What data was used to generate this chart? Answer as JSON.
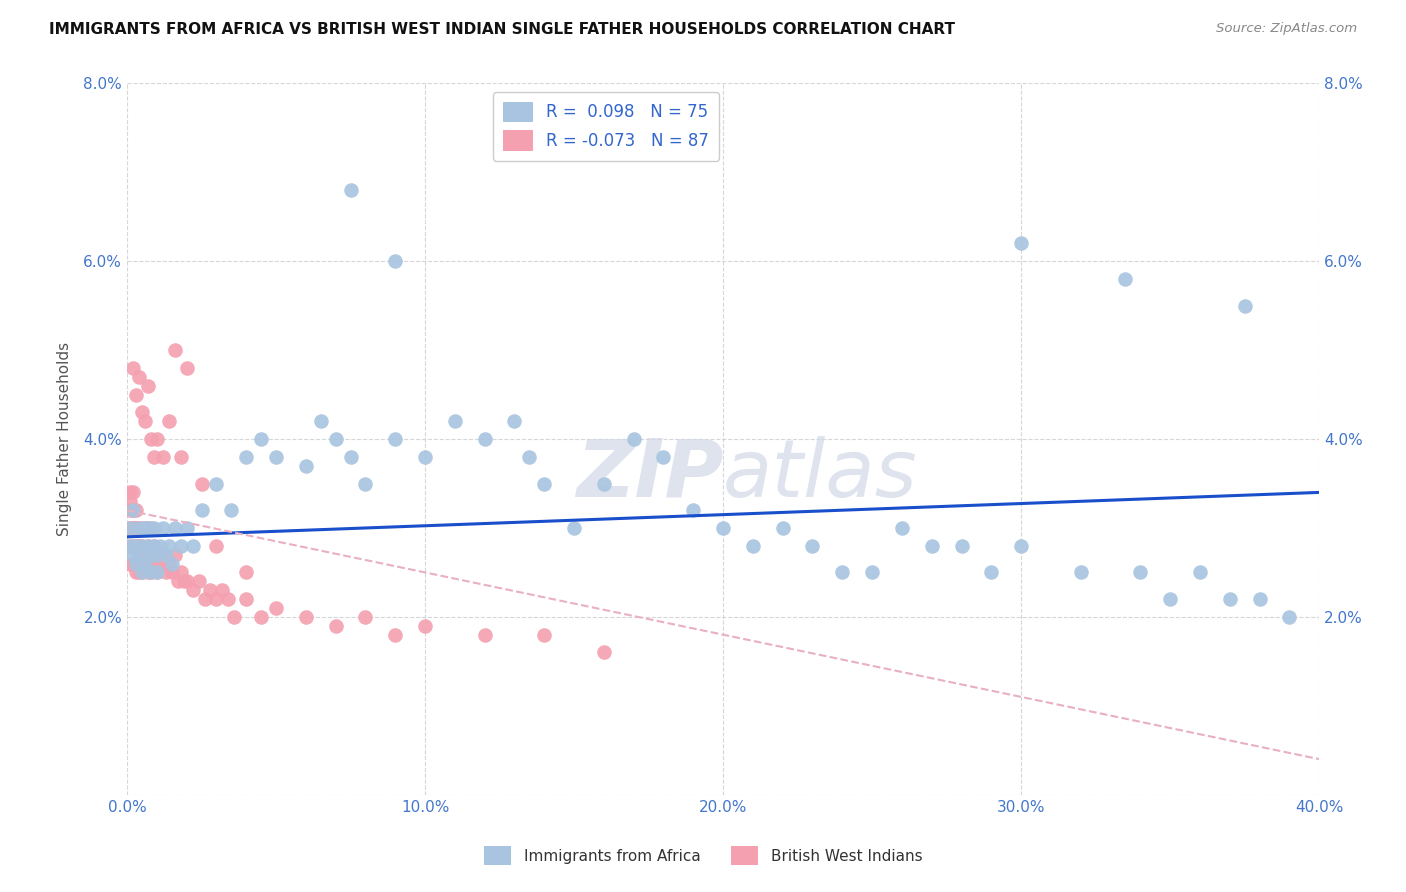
{
  "title": "IMMIGRANTS FROM AFRICA VS BRITISH WEST INDIAN SINGLE FATHER HOUSEHOLDS CORRELATION CHART",
  "source": "Source: ZipAtlas.com",
  "ylabel": "Single Father Households",
  "xlim": [
    0.0,
    0.4
  ],
  "ylim": [
    0.0,
    0.08
  ],
  "africa_R": 0.098,
  "africa_N": 75,
  "bwi_R": -0.073,
  "bwi_N": 87,
  "africa_color": "#a8c4e0",
  "bwi_color": "#f4a0b0",
  "africa_line_color": "#1a4fcc",
  "bwi_line_color": "#e8b0c0",
  "watermark": "ZIPatlas",
  "africa_line": [
    0.029,
    0.034
  ],
  "bwi_line": [
    0.032,
    0.004
  ],
  "africa_x": [
    0.001,
    0.001,
    0.002,
    0.002,
    0.003,
    0.003,
    0.004,
    0.004,
    0.005,
    0.005,
    0.006,
    0.006,
    0.007,
    0.007,
    0.008,
    0.008,
    0.009,
    0.009,
    0.01,
    0.01,
    0.011,
    0.012,
    0.013,
    0.014,
    0.015,
    0.016,
    0.018,
    0.02,
    0.022,
    0.025,
    0.03,
    0.035,
    0.04,
    0.045,
    0.05,
    0.06,
    0.065,
    0.07,
    0.075,
    0.08,
    0.09,
    0.1,
    0.11,
    0.12,
    0.13,
    0.135,
    0.14,
    0.15,
    0.16,
    0.17,
    0.18,
    0.19,
    0.2,
    0.21,
    0.22,
    0.23,
    0.24,
    0.25,
    0.26,
    0.27,
    0.28,
    0.29,
    0.3,
    0.32,
    0.34,
    0.35,
    0.36,
    0.37,
    0.38,
    0.39,
    0.075,
    0.09,
    0.3,
    0.335,
    0.375
  ],
  "africa_y": [
    0.03,
    0.028,
    0.032,
    0.027,
    0.028,
    0.026,
    0.03,
    0.027,
    0.025,
    0.028,
    0.03,
    0.026,
    0.028,
    0.03,
    0.027,
    0.025,
    0.028,
    0.03,
    0.027,
    0.025,
    0.028,
    0.03,
    0.027,
    0.028,
    0.026,
    0.03,
    0.028,
    0.03,
    0.028,
    0.032,
    0.035,
    0.032,
    0.038,
    0.04,
    0.038,
    0.037,
    0.042,
    0.04,
    0.038,
    0.035,
    0.04,
    0.038,
    0.042,
    0.04,
    0.042,
    0.038,
    0.035,
    0.03,
    0.035,
    0.04,
    0.038,
    0.032,
    0.03,
    0.028,
    0.03,
    0.028,
    0.025,
    0.025,
    0.03,
    0.028,
    0.028,
    0.025,
    0.028,
    0.025,
    0.025,
    0.022,
    0.025,
    0.022,
    0.022,
    0.02,
    0.068,
    0.06,
    0.062,
    0.058,
    0.055
  ],
  "bwi_x": [
    0.001,
    0.001,
    0.001,
    0.001,
    0.001,
    0.001,
    0.001,
    0.002,
    0.002,
    0.002,
    0.002,
    0.002,
    0.002,
    0.002,
    0.003,
    0.003,
    0.003,
    0.003,
    0.003,
    0.004,
    0.004,
    0.004,
    0.004,
    0.004,
    0.005,
    0.005,
    0.005,
    0.005,
    0.006,
    0.006,
    0.006,
    0.007,
    0.007,
    0.007,
    0.008,
    0.008,
    0.008,
    0.009,
    0.009,
    0.01,
    0.01,
    0.011,
    0.012,
    0.013,
    0.014,
    0.015,
    0.016,
    0.017,
    0.018,
    0.019,
    0.02,
    0.022,
    0.024,
    0.026,
    0.028,
    0.03,
    0.032,
    0.034,
    0.036,
    0.04,
    0.045,
    0.05,
    0.06,
    0.07,
    0.08,
    0.09,
    0.1,
    0.12,
    0.14,
    0.16,
    0.002,
    0.003,
    0.004,
    0.005,
    0.006,
    0.007,
    0.008,
    0.009,
    0.01,
    0.012,
    0.014,
    0.016,
    0.018,
    0.02,
    0.025,
    0.03,
    0.04
  ],
  "bwi_y": [
    0.033,
    0.03,
    0.032,
    0.028,
    0.03,
    0.026,
    0.034,
    0.032,
    0.03,
    0.034,
    0.028,
    0.03,
    0.026,
    0.032,
    0.03,
    0.028,
    0.032,
    0.025,
    0.03,
    0.028,
    0.03,
    0.027,
    0.025,
    0.028,
    0.03,
    0.027,
    0.025,
    0.028,
    0.026,
    0.03,
    0.027,
    0.028,
    0.03,
    0.025,
    0.027,
    0.03,
    0.025,
    0.028,
    0.026,
    0.027,
    0.025,
    0.026,
    0.027,
    0.025,
    0.026,
    0.025,
    0.027,
    0.024,
    0.025,
    0.024,
    0.024,
    0.023,
    0.024,
    0.022,
    0.023,
    0.022,
    0.023,
    0.022,
    0.02,
    0.022,
    0.02,
    0.021,
    0.02,
    0.019,
    0.02,
    0.018,
    0.019,
    0.018,
    0.018,
    0.016,
    0.048,
    0.045,
    0.047,
    0.043,
    0.042,
    0.046,
    0.04,
    0.038,
    0.04,
    0.038,
    0.042,
    0.05,
    0.038,
    0.048,
    0.035,
    0.028,
    0.025
  ]
}
